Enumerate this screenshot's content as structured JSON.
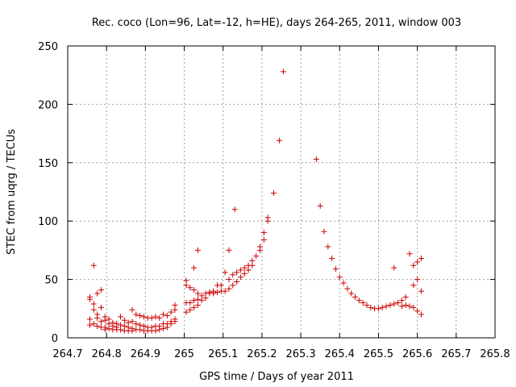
{
  "chart_data": {
    "type": "scatter",
    "title": "Rec. coco (Lon=96, Lat=-12, h=HE), days 264-265, 2011, window 003",
    "xlabel": "GPS time / Days of year 2011",
    "ylabel": "STEC from uqrg / TECUs",
    "xlim": [
      264.7,
      265.8
    ],
    "ylim": [
      0,
      250
    ],
    "xticks": [
      "264.7",
      "264.8",
      "264.9",
      "265",
      "265.1",
      "265.2",
      "265.3",
      "265.4",
      "265.5",
      "265.6",
      "265.7",
      "265.8"
    ],
    "yticks": [
      "0",
      "50",
      "100",
      "150",
      "200",
      "250"
    ],
    "grid": true,
    "marker": "+",
    "color": "#cc0000",
    "points": [
      [
        264.757,
        35
      ],
      [
        264.757,
        33
      ],
      [
        264.757,
        16
      ],
      [
        264.757,
        11
      ],
      [
        264.767,
        62
      ],
      [
        264.767,
        29
      ],
      [
        264.767,
        24
      ],
      [
        264.767,
        12
      ],
      [
        264.776,
        38
      ],
      [
        264.776,
        20
      ],
      [
        264.776,
        17
      ],
      [
        264.776,
        10
      ],
      [
        264.786,
        41
      ],
      [
        264.786,
        26
      ],
      [
        264.786,
        14
      ],
      [
        264.786,
        9
      ],
      [
        264.796,
        18
      ],
      [
        264.796,
        15
      ],
      [
        264.796,
        9
      ],
      [
        264.796,
        7
      ],
      [
        264.806,
        16
      ],
      [
        264.806,
        12
      ],
      [
        264.806,
        8
      ],
      [
        264.816,
        13
      ],
      [
        264.816,
        10
      ],
      [
        264.816,
        7
      ],
      [
        264.826,
        12
      ],
      [
        264.826,
        9
      ],
      [
        264.826,
        7
      ],
      [
        264.836,
        18
      ],
      [
        264.836,
        11
      ],
      [
        264.836,
        7
      ],
      [
        264.846,
        15
      ],
      [
        264.846,
        10
      ],
      [
        264.846,
        6
      ],
      [
        264.856,
        13
      ],
      [
        264.856,
        9
      ],
      [
        264.856,
        6
      ],
      [
        264.866,
        24
      ],
      [
        264.866,
        14
      ],
      [
        264.866,
        8
      ],
      [
        264.866,
        6
      ],
      [
        264.876,
        20
      ],
      [
        264.876,
        12
      ],
      [
        264.876,
        7
      ],
      [
        264.886,
        19
      ],
      [
        264.886,
        11
      ],
      [
        264.886,
        7
      ],
      [
        264.896,
        18
      ],
      [
        264.896,
        10
      ],
      [
        264.896,
        6
      ],
      [
        264.906,
        17
      ],
      [
        264.906,
        9
      ],
      [
        264.906,
        6
      ],
      [
        264.916,
        17
      ],
      [
        264.916,
        9
      ],
      [
        264.916,
        6
      ],
      [
        264.926,
        18
      ],
      [
        264.926,
        10
      ],
      [
        264.926,
        6
      ],
      [
        264.936,
        17
      ],
      [
        264.936,
        10
      ],
      [
        264.936,
        7
      ],
      [
        264.946,
        20
      ],
      [
        264.946,
        12
      ],
      [
        264.946,
        8
      ],
      [
        264.956,
        19
      ],
      [
        264.956,
        12
      ],
      [
        264.956,
        9
      ],
      [
        264.966,
        22
      ],
      [
        264.966,
        14
      ],
      [
        264.966,
        12
      ],
      [
        264.976,
        28
      ],
      [
        264.976,
        24
      ],
      [
        264.976,
        16
      ],
      [
        264.976,
        14
      ],
      [
        265.005,
        49
      ],
      [
        265.005,
        45
      ],
      [
        265.005,
        30
      ],
      [
        265.005,
        22
      ],
      [
        265.015,
        43
      ],
      [
        265.015,
        30
      ],
      [
        265.015,
        24
      ],
      [
        265.025,
        60
      ],
      [
        265.025,
        41
      ],
      [
        265.025,
        32
      ],
      [
        265.025,
        26
      ],
      [
        265.035,
        75
      ],
      [
        265.035,
        38
      ],
      [
        265.035,
        33
      ],
      [
        265.035,
        28
      ],
      [
        265.045,
        36
      ],
      [
        265.045,
        32
      ],
      [
        265.055,
        38
      ],
      [
        265.055,
        34
      ],
      [
        265.065,
        39
      ],
      [
        265.065,
        38
      ],
      [
        265.075,
        40
      ],
      [
        265.075,
        38
      ],
      [
        265.085,
        45
      ],
      [
        265.085,
        39
      ],
      [
        265.095,
        45
      ],
      [
        265.095,
        40
      ],
      [
        265.105,
        56
      ],
      [
        265.105,
        40
      ],
      [
        265.115,
        75
      ],
      [
        265.115,
        50
      ],
      [
        265.115,
        42
      ],
      [
        265.125,
        54
      ],
      [
        265.125,
        45
      ],
      [
        265.13,
        110
      ],
      [
        265.135,
        56
      ],
      [
        265.135,
        48
      ],
      [
        265.145,
        58
      ],
      [
        265.145,
        52
      ],
      [
        265.155,
        60
      ],
      [
        265.155,
        55
      ],
      [
        265.165,
        62
      ],
      [
        265.165,
        58
      ],
      [
        265.175,
        66
      ],
      [
        265.175,
        62
      ],
      [
        265.185,
        70
      ],
      [
        265.195,
        75
      ],
      [
        265.195,
        78
      ],
      [
        265.205,
        84
      ],
      [
        265.205,
        90
      ],
      [
        265.215,
        100
      ],
      [
        265.215,
        103
      ],
      [
        265.23,
        124
      ],
      [
        265.245,
        169
      ],
      [
        265.255,
        228
      ],
      [
        265.34,
        153
      ],
      [
        265.35,
        113
      ],
      [
        265.36,
        91
      ],
      [
        265.37,
        78
      ],
      [
        265.38,
        68
      ],
      [
        265.39,
        59
      ],
      [
        265.4,
        52
      ],
      [
        265.41,
        47
      ],
      [
        265.42,
        42
      ],
      [
        265.43,
        38
      ],
      [
        265.44,
        35
      ],
      [
        265.45,
        32
      ],
      [
        265.46,
        30
      ],
      [
        265.47,
        28
      ],
      [
        265.48,
        26
      ],
      [
        265.49,
        25
      ],
      [
        265.5,
        25
      ],
      [
        265.51,
        26
      ],
      [
        265.52,
        27
      ],
      [
        265.53,
        28
      ],
      [
        265.54,
        60
      ],
      [
        265.54,
        29
      ],
      [
        265.55,
        30
      ],
      [
        265.56,
        32
      ],
      [
        265.56,
        27
      ],
      [
        265.57,
        35
      ],
      [
        265.57,
        28
      ],
      [
        265.58,
        72
      ],
      [
        265.58,
        27
      ],
      [
        265.59,
        62
      ],
      [
        265.59,
        45
      ],
      [
        265.59,
        26
      ],
      [
        265.6,
        65
      ],
      [
        265.6,
        50
      ],
      [
        265.6,
        23
      ],
      [
        265.61,
        68
      ],
      [
        265.61,
        40
      ],
      [
        265.61,
        20
      ]
    ]
  }
}
